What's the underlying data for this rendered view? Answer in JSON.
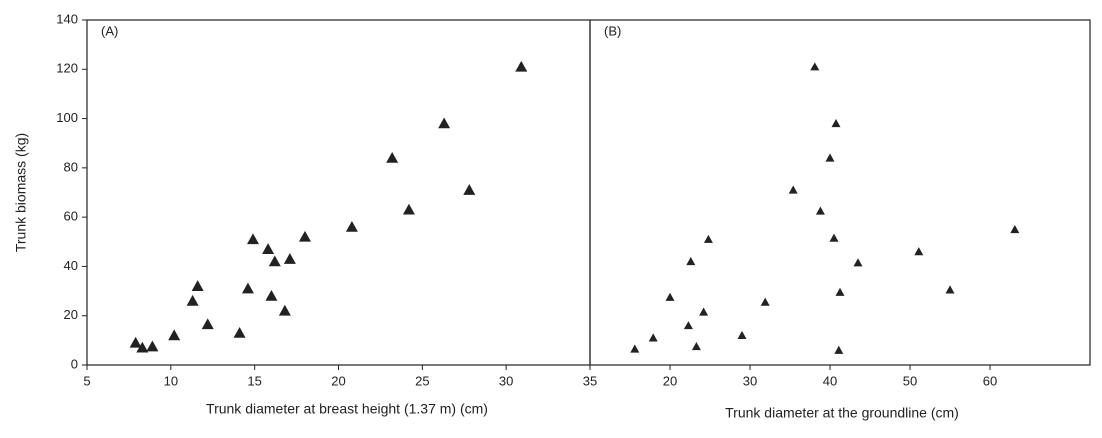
{
  "chart_data": [
    {
      "type": "scatter",
      "annotation": "(A)",
      "ylabel": "Trunk biomass (kg)",
      "xlabel": "Trunk diameter at breast height (1.37 m) (cm)",
      "color": "#222222",
      "x": [
        7.9,
        8.3,
        8.9,
        10.2,
        11.3,
        11.6,
        12.2,
        14.1,
        14.6,
        14.9,
        15.8,
        16.0,
        16.2,
        16.8,
        17.1,
        18.0,
        20.8,
        23.2,
        24.2,
        26.3,
        27.8,
        30.9
      ],
      "values": [
        9,
        7,
        7.5,
        12,
        26,
        32,
        16.5,
        13,
        31,
        51,
        47,
        28,
        42,
        22,
        43,
        52,
        56,
        84,
        63,
        98,
        71,
        121
      ],
      "xlim": [
        5,
        35
      ],
      "xticks": [
        5,
        10,
        15,
        20,
        25,
        30,
        35
      ],
      "ylim": [
        0,
        140
      ],
      "yticks": [
        0,
        20,
        40,
        60,
        80,
        100,
        120,
        140
      ]
    },
    {
      "type": "scatter",
      "annotation": "(B)",
      "xlabel": "Trunk diameter at the groundline (cm)",
      "color": "#222222",
      "x": [
        15.6,
        17.9,
        20.0,
        22.3,
        22.6,
        23.3,
        24.2,
        24.8,
        29.0,
        31.9,
        35.4,
        38.8,
        38.1,
        40.5,
        41.25,
        43.5,
        41.1,
        51.1,
        55.0,
        63.1,
        40.0,
        40.75
      ],
      "values": [
        6.5,
        11,
        27.5,
        16,
        42,
        7.5,
        21.5,
        51,
        12,
        25.5,
        71,
        62.5,
        121,
        51.5,
        29.5,
        41.5,
        6,
        46,
        30.5,
        55,
        84,
        98
      ],
      "xlim": [
        10,
        72.5
      ],
      "xticks": [
        20,
        30,
        40,
        50,
        60
      ],
      "ylim": [
        0,
        140
      ]
    }
  ]
}
